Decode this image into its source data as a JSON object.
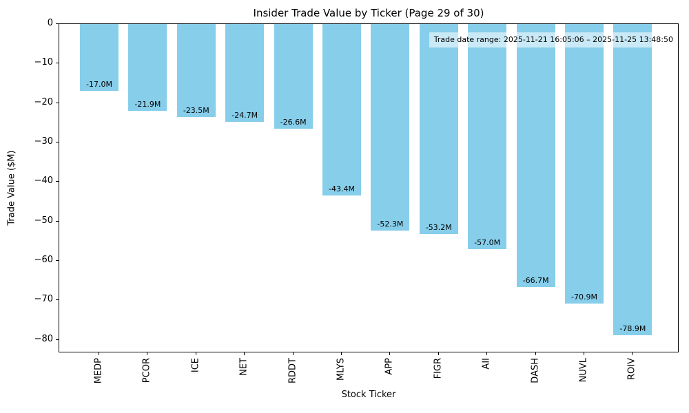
{
  "figure": {
    "title": "Insider Trade Value by Ticker (Page 29 of 30)",
    "xlabel": "Stock Ticker",
    "ylabel": "Trade Value ($M)",
    "annotation": "Trade date range: 2025-11-21 16:05:06 – 2025-11-25 13:48:50"
  },
  "chart_data": {
    "type": "bar",
    "title": "Insider Trade Value by Ticker (Page 29 of 30)",
    "xlabel": "Stock Ticker",
    "ylabel": "Trade Value ($M)",
    "categories": [
      "MEDP",
      "PCOR",
      "ICE",
      "NET",
      "RDDT",
      "MLYS",
      "APP",
      "FIGR",
      "AII",
      "DASH",
      "NUVL",
      "ROIV"
    ],
    "values": [
      -17.0,
      -21.9,
      -23.5,
      -24.7,
      -26.6,
      -43.4,
      -52.3,
      -53.2,
      -57.0,
      -66.7,
      -70.9,
      -78.9
    ],
    "bar_labels": [
      "-17.0M",
      "-21.9M",
      "-23.5M",
      "-24.7M",
      "-26.6M",
      "-43.4M",
      "-52.3M",
      "-53.2M",
      "-57.0M",
      "-66.7M",
      "-70.9M",
      "-78.9M"
    ],
    "bar_color": "#87CEEB",
    "ylim": [
      -83.4,
      0
    ],
    "yticks": [
      0,
      -10,
      -20,
      -30,
      -40,
      -50,
      -60,
      -70,
      -80
    ],
    "ytick_labels": [
      "0",
      "−10",
      "−20",
      "−30",
      "−40",
      "−50",
      "−60",
      "−70",
      "−80"
    ],
    "grid": false,
    "legend": false,
    "annotation": "Trade date range: 2025-11-21 16:05:06 – 2025-11-25 13:48:50"
  }
}
